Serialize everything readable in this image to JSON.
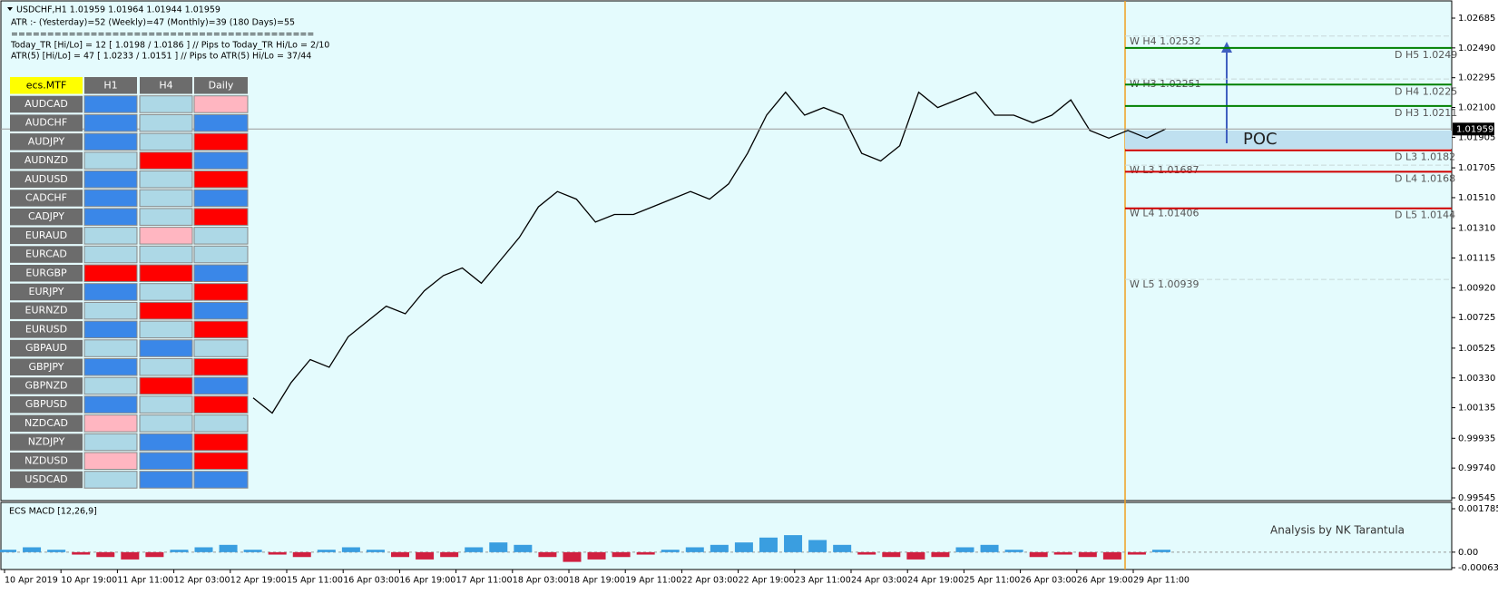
{
  "header": {
    "symbol_line": "USDCHF,H1  1.01959 1.01964 1.01944 1.01959",
    "atr_line": "ATR :- (Yesterday)=52      (Weekly)=47      (Monthly)=39      (180 Days)=55",
    "separator": "==========================================",
    "today_line": "Today_TR [Hi/Lo] = 12 [ 1.0198 / 1.0186 ]   // Pips to Today_TR Hi/Lo  = 2/10",
    "atr5_line": "ATR(5) [Hi/Lo] = 47 [ 1.0233 / 1.0151 ]   // Pips to ATR(5) Hi/Lo      = 37/44"
  },
  "table": {
    "columns": [
      "ecs.MTF",
      "H1",
      "H4",
      "Daily"
    ],
    "rows": [
      {
        "symbol": "AUDCAD",
        "colors": [
          "#3a87e8",
          "#add8e6",
          "#ffb6c1"
        ]
      },
      {
        "symbol": "AUDCHF",
        "colors": [
          "#3a87e8",
          "#add8e6",
          "#3a87e8"
        ]
      },
      {
        "symbol": "AUDJPY",
        "colors": [
          "#3a87e8",
          "#add8e6",
          "#ff0000"
        ]
      },
      {
        "symbol": "AUDNZD",
        "colors": [
          "#add8e6",
          "#ff0000",
          "#3a87e8"
        ]
      },
      {
        "symbol": "AUDUSD",
        "colors": [
          "#3a87e8",
          "#add8e6",
          "#ff0000"
        ]
      },
      {
        "symbol": "CADCHF",
        "colors": [
          "#3a87e8",
          "#add8e6",
          "#3a87e8"
        ]
      },
      {
        "symbol": "CADJPY",
        "colors": [
          "#3a87e8",
          "#add8e6",
          "#ff0000"
        ]
      },
      {
        "symbol": "EURAUD",
        "colors": [
          "#add8e6",
          "#ffb6c1",
          "#add8e6"
        ]
      },
      {
        "symbol": "EURCAD",
        "colors": [
          "#add8e6",
          "#add8e6",
          "#add8e6"
        ]
      },
      {
        "symbol": "EURGBP",
        "colors": [
          "#ff0000",
          "#ff0000",
          "#3a87e8"
        ]
      },
      {
        "symbol": "EURJPY",
        "colors": [
          "#3a87e8",
          "#add8e6",
          "#ff0000"
        ]
      },
      {
        "symbol": "EURNZD",
        "colors": [
          "#add8e6",
          "#ff0000",
          "#3a87e8"
        ]
      },
      {
        "symbol": "EURUSD",
        "colors": [
          "#3a87e8",
          "#add8e6",
          "#ff0000"
        ]
      },
      {
        "symbol": "GBPAUD",
        "colors": [
          "#add8e6",
          "#3a87e8",
          "#add8e6"
        ]
      },
      {
        "symbol": "GBPJPY",
        "colors": [
          "#3a87e8",
          "#add8e6",
          "#ff0000"
        ]
      },
      {
        "symbol": "GBPNZD",
        "colors": [
          "#add8e6",
          "#ff0000",
          "#3a87e8"
        ]
      },
      {
        "symbol": "GBPUSD",
        "colors": [
          "#3a87e8",
          "#add8e6",
          "#ff0000"
        ]
      },
      {
        "symbol": "NZDCAD",
        "colors": [
          "#ffb6c1",
          "#add8e6",
          "#add8e6"
        ]
      },
      {
        "symbol": "NZDJPY",
        "colors": [
          "#add8e6",
          "#3a87e8",
          "#ff0000"
        ]
      },
      {
        "symbol": "NZDUSD",
        "colors": [
          "#ffb6c1",
          "#3a87e8",
          "#ff0000"
        ]
      },
      {
        "symbol": "USDCAD",
        "colors": [
          "#add8e6",
          "#3a87e8",
          "#3a87e8"
        ]
      }
    ]
  },
  "price_chart": {
    "ylim": [
      0.99545,
      1.02685
    ],
    "yticks": [
      {
        "value": 1.02685,
        "label": "1.02685"
      },
      {
        "value": 1.0249,
        "label": "1.02490"
      },
      {
        "value": 1.02295,
        "label": "1.02295"
      },
      {
        "value": 1.021,
        "label": "1.02100"
      },
      {
        "value": 1.01905,
        "label": "1.01905"
      },
      {
        "value": 1.01705,
        "label": "1.01705"
      },
      {
        "value": 1.0151,
        "label": "1.01510"
      },
      {
        "value": 1.0131,
        "label": "1.01310"
      },
      {
        "value": 1.01115,
        "label": "1.01115"
      },
      {
        "value": 1.0092,
        "label": "1.00920"
      },
      {
        "value": 1.00725,
        "label": "1.00725"
      },
      {
        "value": 1.00525,
        "label": "1.00525"
      },
      {
        "value": 1.0033,
        "label": "1.00330"
      },
      {
        "value": 1.00135,
        "label": "1.00135"
      },
      {
        "value": 0.99935,
        "label": "0.99935"
      },
      {
        "value": 0.9974,
        "label": "0.99740"
      },
      {
        "value": 0.99545,
        "label": "0.99545"
      }
    ],
    "current_price": {
      "value": 1.01959,
      "label": "1.01959"
    },
    "closes": [
      1.002,
      1.001,
      1.003,
      1.0045,
      1.004,
      1.006,
      1.007,
      1.008,
      1.0075,
      1.009,
      1.01,
      1.0105,
      1.0095,
      1.011,
      1.0125,
      1.0145,
      1.0155,
      1.015,
      1.0135,
      1.014,
      1.014,
      1.0145,
      1.015,
      1.0155,
      1.015,
      1.016,
      1.018,
      1.0205,
      1.022,
      1.0205,
      1.021,
      1.0205,
      1.018,
      1.0175,
      1.0185,
      1.022,
      1.021,
      1.0215,
      1.022,
      1.0205,
      1.0205,
      1.02,
      1.0205,
      1.0215,
      1.0195,
      1.019,
      1.0195,
      1.019,
      1.0196
    ],
    "daily_levels": [
      {
        "label": "D H5 1.0249",
        "price": 1.0249,
        "color": "#008000"
      },
      {
        "label": "D H4 1.0225",
        "price": 1.0225,
        "color": "#008000"
      },
      {
        "label": "D H3 1.0211",
        "price": 1.0211,
        "color": "#008000"
      },
      {
        "label": "D L3 1.0182",
        "price": 1.0182,
        "color": "#d00000"
      },
      {
        "label": "D L4 1.0168",
        "price": 1.0168,
        "color": "#d00000"
      },
      {
        "label": "D L5 1.0144",
        "price": 1.0144,
        "color": "#d00000"
      }
    ],
    "weekly_levels": [
      {
        "label": "W H4 1.02532",
        "price": 1.02532
      },
      {
        "label": "W H3 1.02251",
        "price": 1.02251
      },
      {
        "label": "W L3 1.01687",
        "price": 1.01687
      },
      {
        "label": "W L4 1.01406",
        "price": 1.01406
      },
      {
        "label": "W L5 1.00939",
        "price": 1.00939
      }
    ],
    "poc_label": "POC",
    "credit": "Analysis by NK Tarantula"
  },
  "macd": {
    "title": "ECS MACD [12,26,9]",
    "ylim": [
      -0.000639,
      0.0017853
    ],
    "yticks": [
      {
        "value": 0.0017853,
        "label": "0.0017853"
      },
      {
        "value": 0,
        "label": "0.00"
      },
      {
        "value": -0.000639,
        "label": "-0.000639"
      }
    ],
    "histogram": [
      0.0001,
      0.0002,
      0.0001,
      -0.0001,
      -0.0002,
      -0.0003,
      -0.0002,
      0.0001,
      0.0002,
      0.0003,
      0.0001,
      -0.0001,
      -0.0002,
      0.0001,
      0.0002,
      0.0001,
      -0.0002,
      -0.0003,
      -0.0002,
      0.0002,
      0.0004,
      0.0003,
      -0.0002,
      -0.0004,
      -0.0003,
      -0.0002,
      -0.0001,
      0.0001,
      0.0002,
      0.0003,
      0.0004,
      0.0006,
      0.0007,
      0.0005,
      0.0003,
      -0.0001,
      -0.0002,
      -0.0003,
      -0.0002,
      0.0002,
      0.0003,
      0.0001,
      -0.0002,
      -0.0001,
      -0.0002,
      -0.0003,
      -0.0001,
      0.0001
    ]
  },
  "time_axis": [
    "10 Apr 2019",
    "10 Apr 19:00",
    "11 Apr 11:00",
    "12 Apr 03:00",
    "12 Apr 19:00",
    "15 Apr 11:00",
    "16 Apr 03:00",
    "16 Apr 19:00",
    "17 Apr 11:00",
    "18 Apr 03:00",
    "18 Apr 19:00",
    "19 Apr 11:00",
    "22 Apr 03:00",
    "22 Apr 19:00",
    "23 Apr 11:00",
    "24 Apr 03:00",
    "24 Apr 19:00",
    "25 Apr 11:00",
    "26 Apr 03:00",
    "26 Apr 19:00",
    "29 Apr 11:00"
  ]
}
